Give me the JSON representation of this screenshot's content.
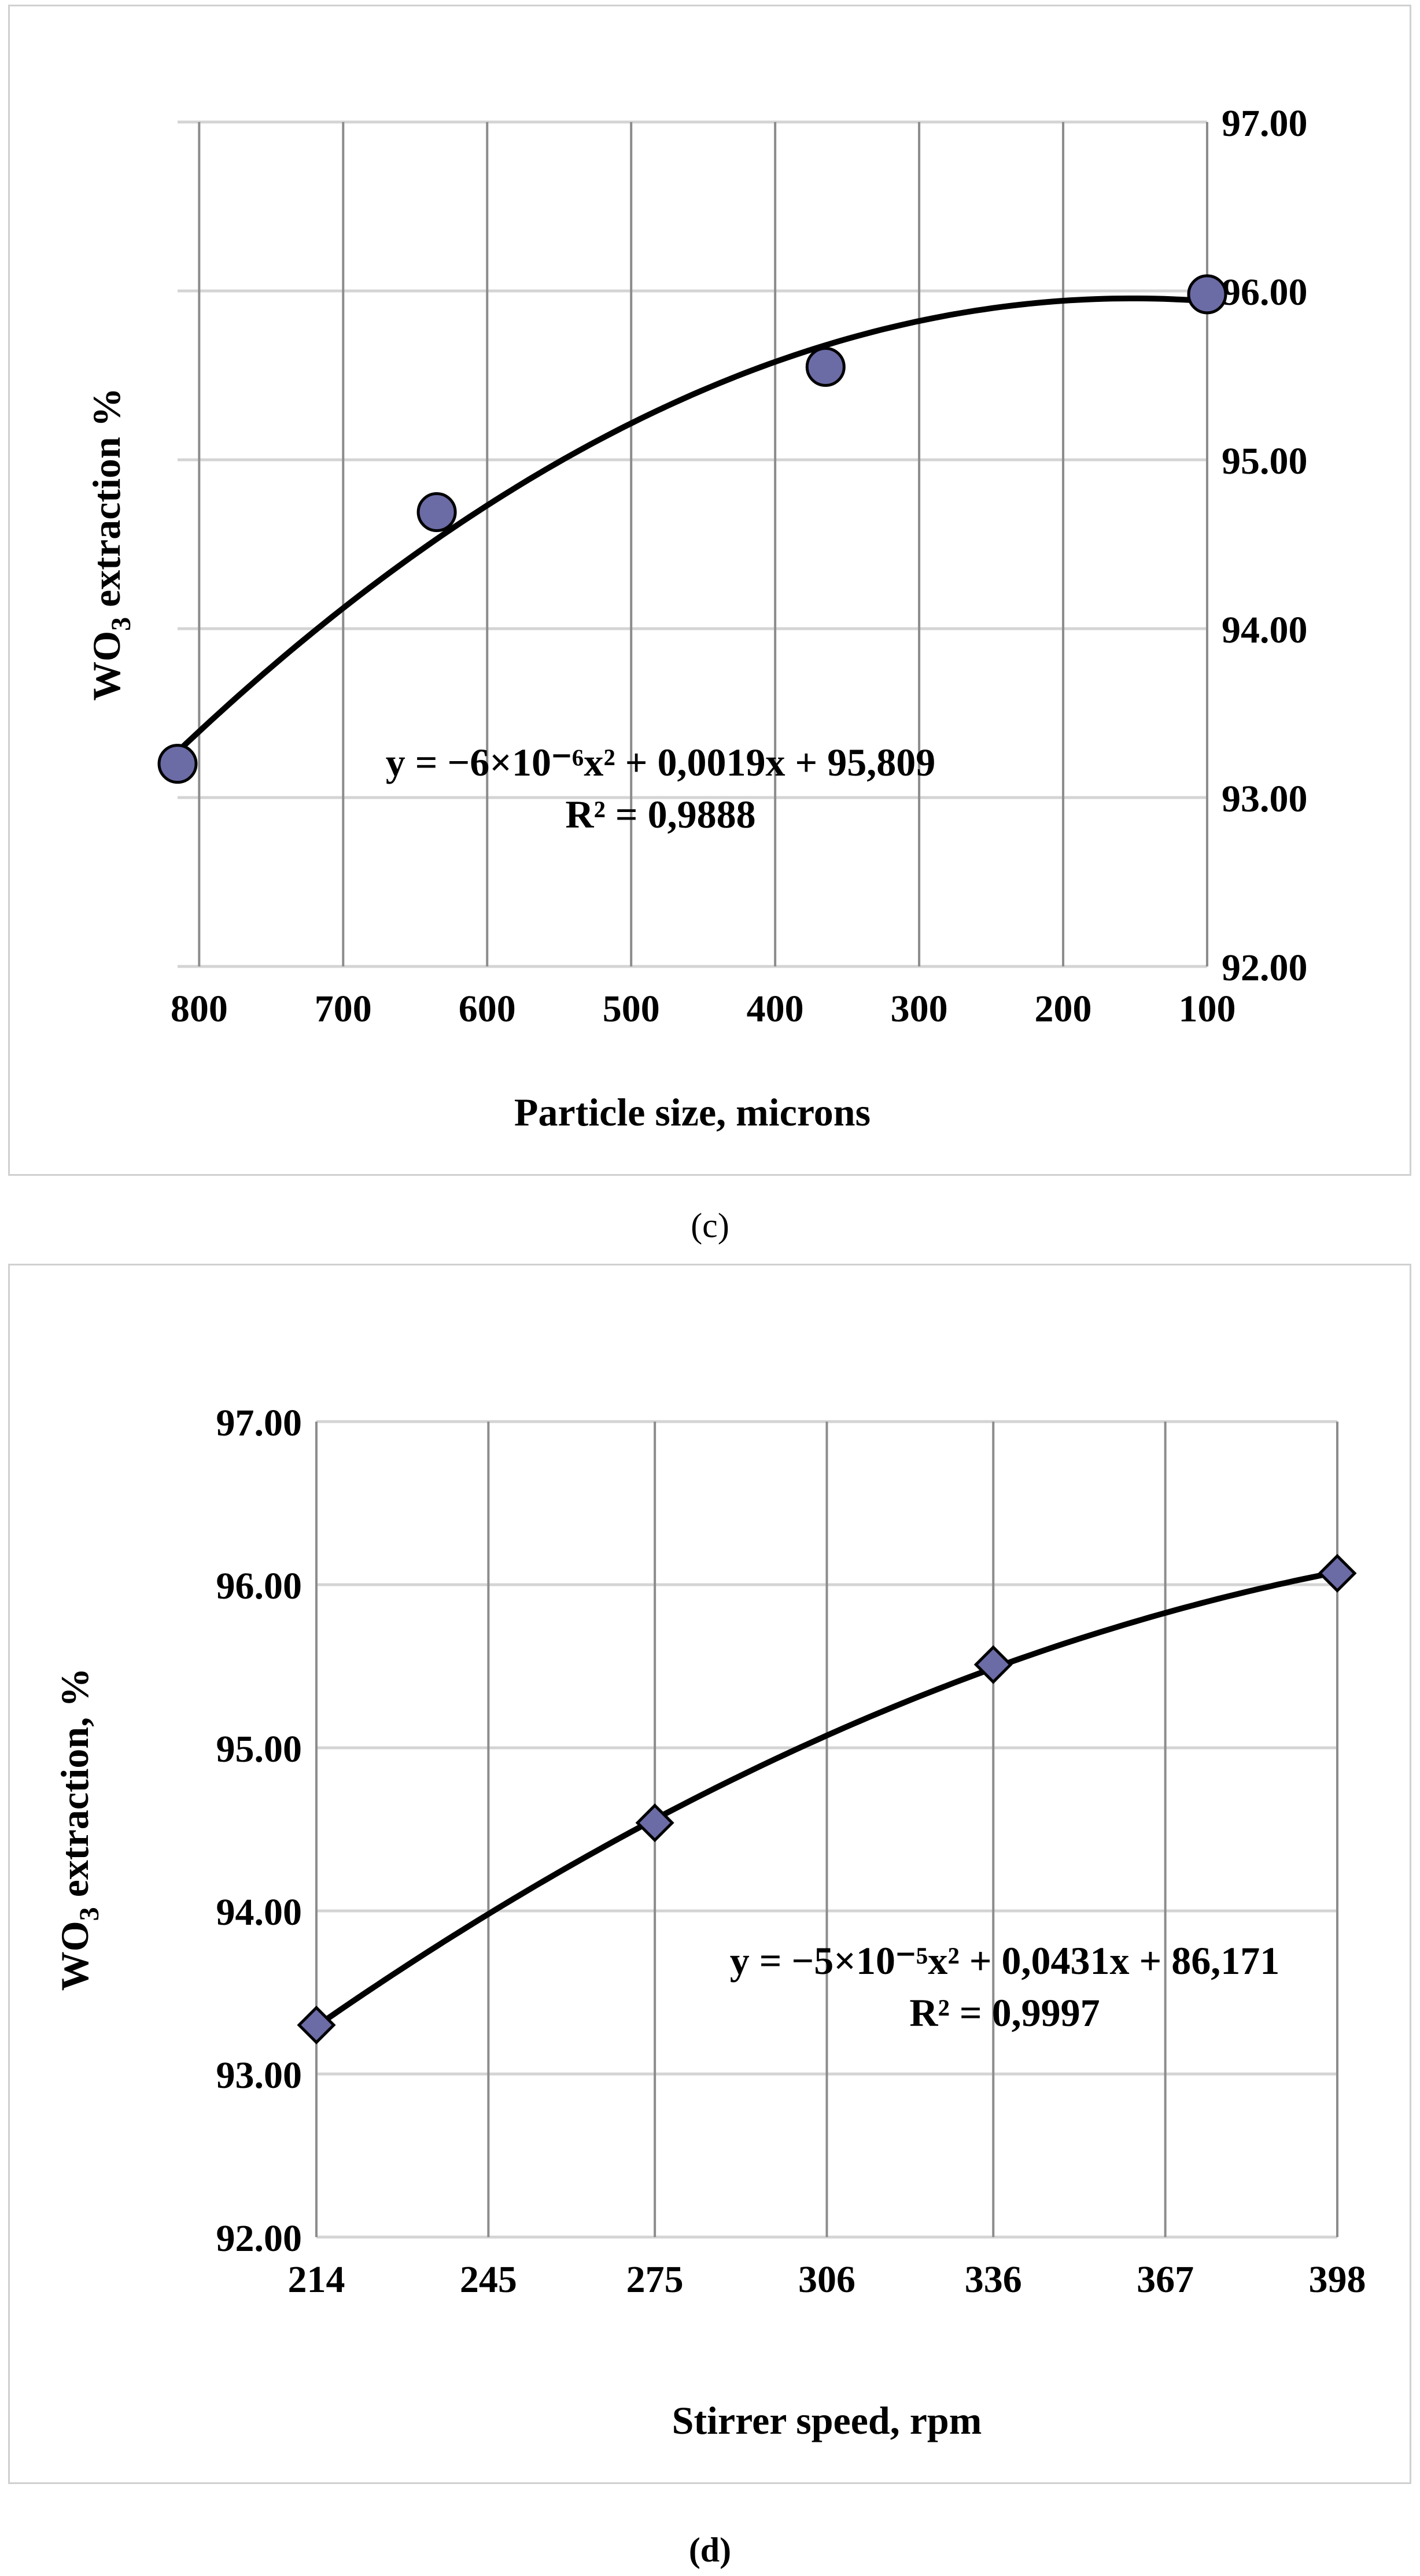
{
  "chart_data": [
    {
      "type": "scatter",
      "panel": "(c)",
      "xlabel": "Particle size, microns",
      "ylabel_main": "WO",
      "ylabel_sub": "3",
      "ylabel_rest": " extraction %",
      "x_ticks": [
        "800",
        "700",
        "600",
        "500",
        "400",
        "300",
        "200",
        "100"
      ],
      "x_tick_values": [
        800,
        700,
        600,
        500,
        400,
        300,
        200,
        100
      ],
      "xlim": [
        815,
        100
      ],
      "x_reversed": true,
      "y_ticks": [
        "97.00",
        "96.00",
        "95.00",
        "94.00",
        "93.00",
        "92.00"
      ],
      "y_tick_values": [
        97,
        96,
        95,
        94,
        93,
        92
      ],
      "ylim": [
        92,
        97
      ],
      "y_axis_side": "right",
      "grid": true,
      "marker": "circle",
      "marker_color": "#6b6ba6",
      "points": [
        {
          "x": 815,
          "y": 93.2
        },
        {
          "x": 635,
          "y": 94.69
        },
        {
          "x": 365,
          "y": 95.55
        },
        {
          "x": 100,
          "y": 95.98
        }
      ],
      "trendline": {
        "type": "polynomial",
        "order": 2
      },
      "equation": "y = −6×10⁻⁶x² + 0,0019x + 95,809",
      "r2": "R² = 0,9888"
    },
    {
      "type": "scatter",
      "panel": "(d)",
      "xlabel": "Stirrer speed, rpm",
      "ylabel_main": "WO",
      "ylabel_sub": "3",
      "ylabel_rest": " extraction, %",
      "x_ticks": [
        "214",
        "245",
        "275",
        "306",
        "336",
        "367",
        "398"
      ],
      "x_tick_values": [
        214,
        245,
        275,
        306,
        336,
        367,
        398
      ],
      "xlim": [
        214,
        398
      ],
      "x_reversed": false,
      "y_ticks": [
        "97.00",
        "96.00",
        "95.00",
        "94.00",
        "93.00",
        "92.00"
      ],
      "y_tick_values": [
        97,
        96,
        95,
        94,
        93,
        92
      ],
      "ylim": [
        92,
        97
      ],
      "y_axis_side": "left",
      "grid": true,
      "marker": "diamond",
      "marker_color": "#6b6ba6",
      "points": [
        {
          "x": 214,
          "y": 93.3
        },
        {
          "x": 275,
          "y": 94.54
        },
        {
          "x": 336,
          "y": 95.51
        },
        {
          "x": 398,
          "y": 96.07
        }
      ],
      "trendline": {
        "type": "polynomial",
        "order": 2
      },
      "equation": "y = −5×10⁻⁵x² + 0,0431x + 86,171",
      "r2": "R² = 0,9997"
    }
  ],
  "captions": {
    "c": "(c)",
    "d": "(d)"
  }
}
